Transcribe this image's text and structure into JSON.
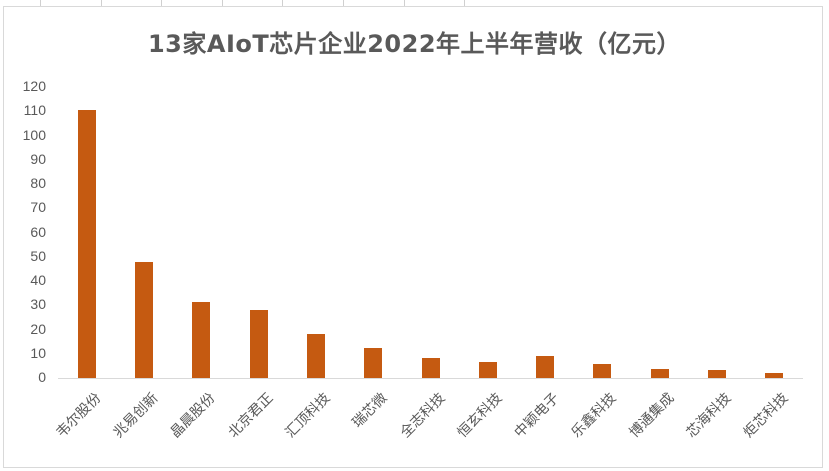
{
  "chart_data": {
    "type": "bar",
    "title": "13家AIoT芯片企业2022年上半年营收（亿元）",
    "xlabel": "",
    "ylabel": "",
    "ylim": [
      0,
      120
    ],
    "yticks": [
      0,
      10,
      20,
      30,
      40,
      50,
      60,
      70,
      80,
      90,
      100,
      110,
      120
    ],
    "grid": false,
    "legend": null,
    "bar_color": "#c55a11",
    "categories": [
      "韦尔股份",
      "兆易创新",
      "晶晨股份",
      "北京君正",
      "汇顶科技",
      "瑞芯微",
      "全志科技",
      "恒玄科技",
      "中颖电子",
      "乐鑫科技",
      "博通集成",
      "芯海科技",
      "炬芯科技"
    ],
    "values": [
      110.5,
      47.8,
      31.3,
      28.0,
      18.1,
      12.4,
      8.2,
      6.6,
      9.0,
      5.8,
      3.7,
      3.3,
      2.1
    ]
  }
}
